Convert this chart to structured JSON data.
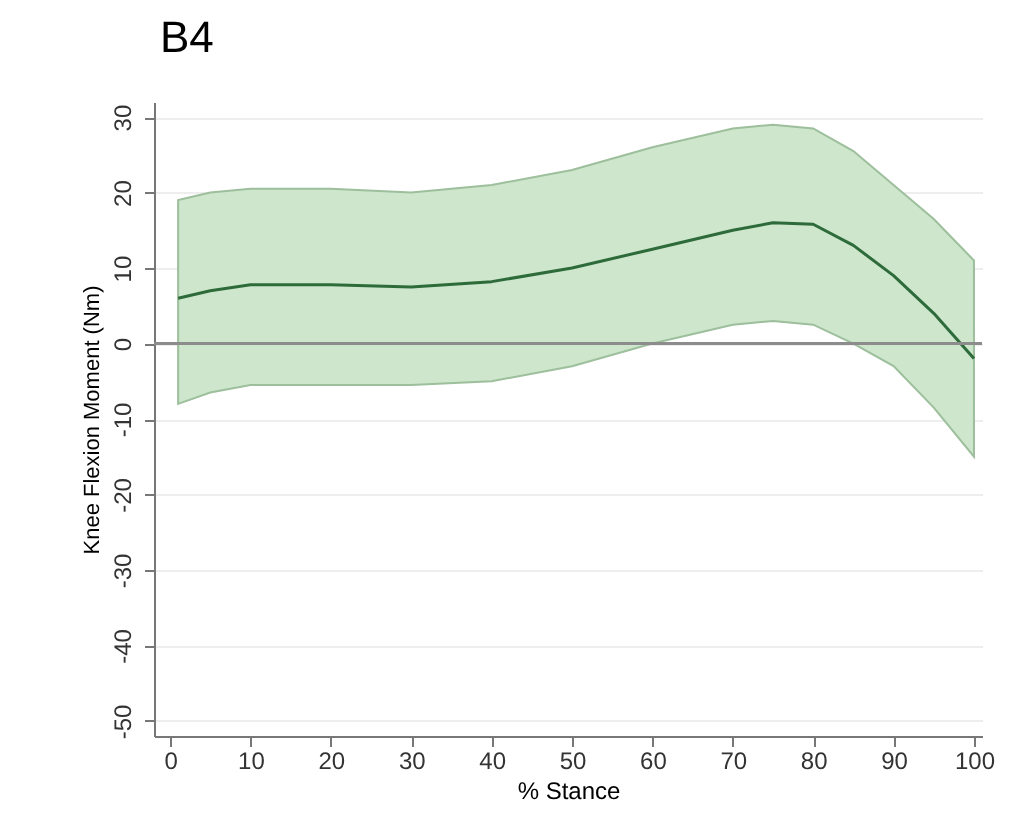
{
  "chart_data": {
    "type": "line",
    "title": "B4",
    "xlabel": "% Stance",
    "ylabel": "Knee Flexion Moment (Nm)",
    "x": [
      1,
      5,
      10,
      20,
      30,
      40,
      50,
      60,
      70,
      75,
      80,
      85,
      90,
      95,
      100
    ],
    "series": [
      {
        "color": "#2e6b3a",
        "values": [
          6,
          7,
          7.8,
          7.8,
          7.5,
          8.2,
          10,
          12.5,
          15,
          16,
          15.8,
          13,
          9,
          4,
          -2
        ],
        "lower": [
          -8,
          -6.5,
          -5.5,
          -5.5,
          -5.5,
          -5,
          -3,
          0,
          2.5,
          3,
          2.5,
          0,
          -3,
          -8.5,
          -15
        ],
        "upper": [
          19,
          20,
          20.5,
          20.5,
          20,
          21,
          23,
          26,
          28.5,
          29,
          28.5,
          25.5,
          21,
          16.5,
          11
        ]
      }
    ],
    "xlim": [
      -2,
      101
    ],
    "xticks": [
      0,
      10,
      20,
      30,
      40,
      50,
      60,
      70,
      80,
      90,
      100
    ],
    "ylim": [
      -52,
      32
    ],
    "yticks": [
      -50,
      -40,
      -30,
      -20,
      -10,
      0,
      10,
      20,
      30
    ],
    "ref_lines": [
      {
        "axis": "y",
        "value": 0,
        "color": "#8c8c8c"
      }
    ],
    "grid": "y",
    "marker": "none",
    "line_style": "solid"
  }
}
